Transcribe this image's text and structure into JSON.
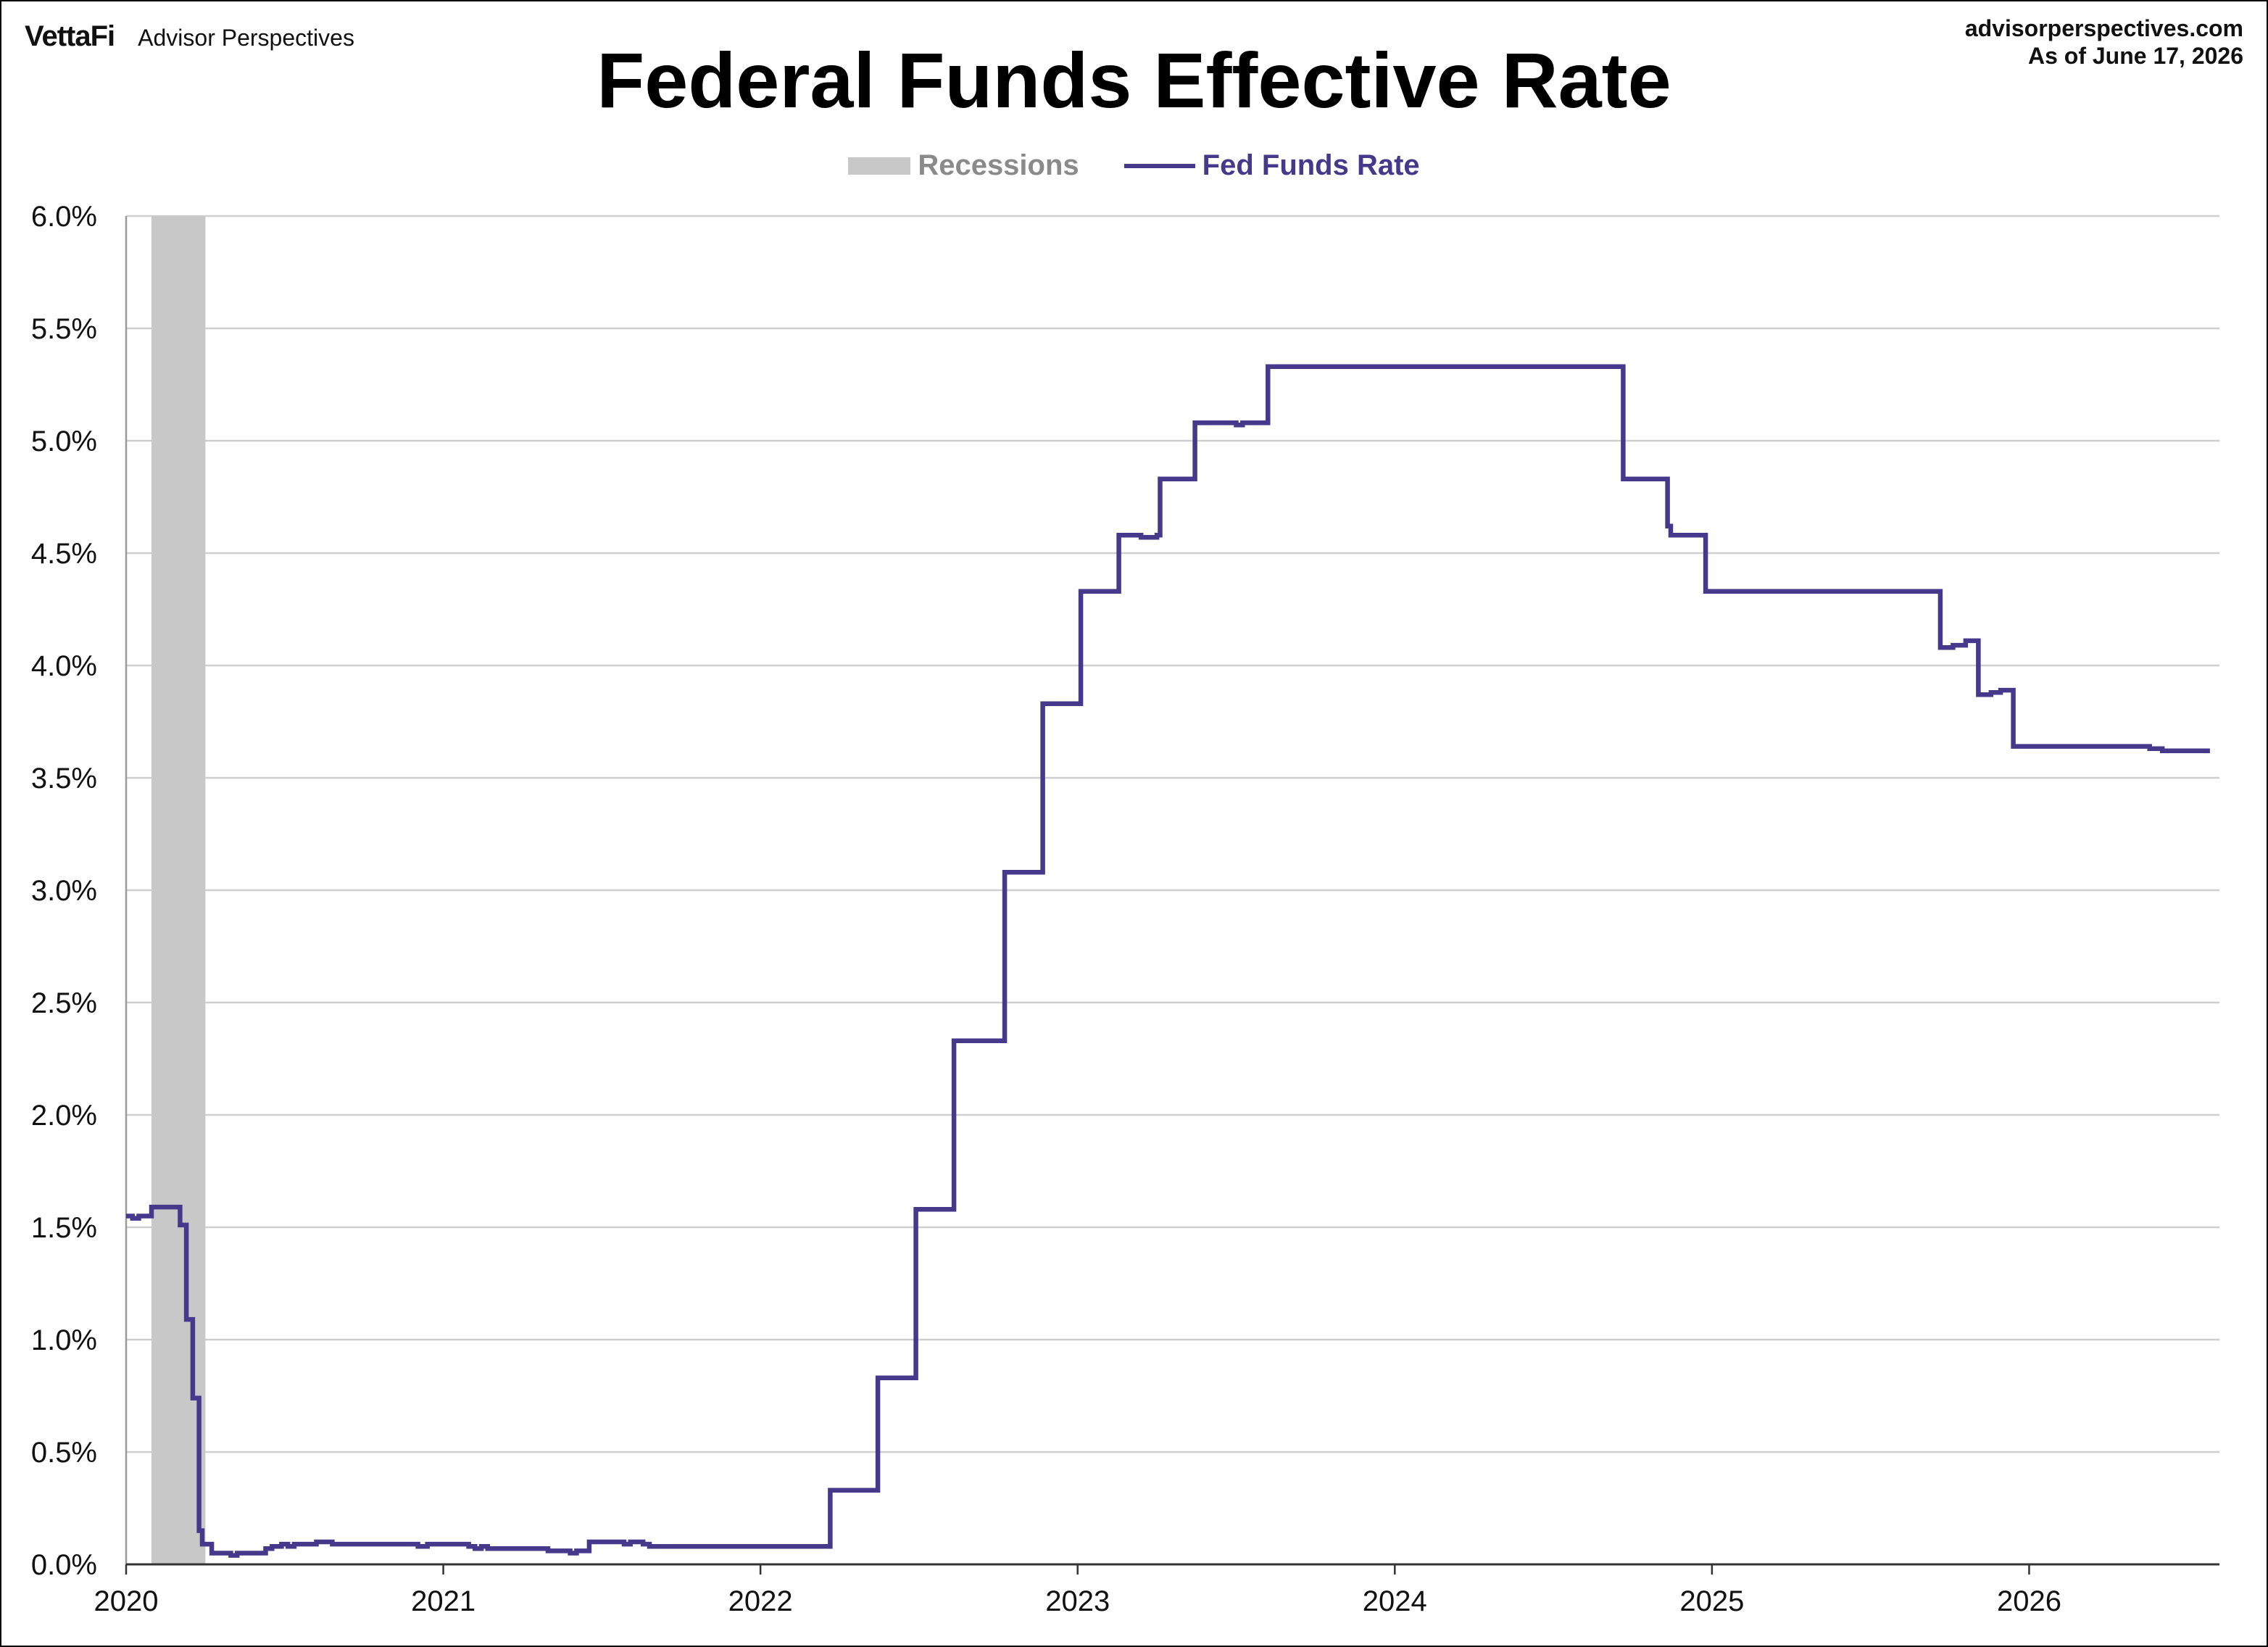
{
  "brand": {
    "logo": "VettaFi",
    "name": "Advisor Perspectives"
  },
  "source": {
    "site": "advisorperspectives.com",
    "as_of": "As of June 17, 2026"
  },
  "chart_data": {
    "type": "line",
    "title": "Federal Funds Effective Rate",
    "legend": [
      {
        "label": "Recessions",
        "color": "#c8c8c8",
        "kind": "band"
      },
      {
        "label": "Fed Funds Rate",
        "color": "#46398c",
        "kind": "line"
      }
    ],
    "legend_position": "top-center",
    "xlim": [
      2020.0,
      2026.6
    ],
    "ylim": [
      0,
      6
    ],
    "x_ticks": [
      {
        "value": 2020,
        "label": "2020"
      },
      {
        "value": 2021,
        "label": "2021"
      },
      {
        "value": 2022,
        "label": "2022"
      },
      {
        "value": 2023,
        "label": "2023"
      },
      {
        "value": 2024,
        "label": "2024"
      },
      {
        "value": 2025,
        "label": "2025"
      },
      {
        "value": 2026,
        "label": "2026"
      }
    ],
    "y_ticks": [
      {
        "value": 0.0,
        "label": "0.0%"
      },
      {
        "value": 0.5,
        "label": "0.5%"
      },
      {
        "value": 1.0,
        "label": "1.0%"
      },
      {
        "value": 1.5,
        "label": "1.5%"
      },
      {
        "value": 2.0,
        "label": "2.0%"
      },
      {
        "value": 2.5,
        "label": "2.5%"
      },
      {
        "value": 3.0,
        "label": "3.0%"
      },
      {
        "value": 3.5,
        "label": "3.5%"
      },
      {
        "value": 4.0,
        "label": "4.0%"
      },
      {
        "value": 4.5,
        "label": "4.5%"
      },
      {
        "value": 5.0,
        "label": "5.0%"
      },
      {
        "value": 5.5,
        "label": "5.5%"
      },
      {
        "value": 6.0,
        "label": "6.0%"
      }
    ],
    "grid": true,
    "recessions": [
      {
        "start": 2020.08,
        "end": 2020.25
      }
    ],
    "series": [
      {
        "name": "Fed Funds Rate",
        "color": "#46398c",
        "step": true,
        "points": [
          [
            2020.0,
            1.55
          ],
          [
            2020.02,
            1.54
          ],
          [
            2020.04,
            1.55
          ],
          [
            2020.08,
            1.59
          ],
          [
            2020.17,
            1.51
          ],
          [
            2020.19,
            1.09
          ],
          [
            2020.21,
            0.74
          ],
          [
            2020.23,
            0.15
          ],
          [
            2020.24,
            0.09
          ],
          [
            2020.27,
            0.05
          ],
          [
            2020.33,
            0.04
          ],
          [
            2020.35,
            0.05
          ],
          [
            2020.44,
            0.07
          ],
          [
            2020.46,
            0.08
          ],
          [
            2020.49,
            0.09
          ],
          [
            2020.51,
            0.08
          ],
          [
            2020.53,
            0.09
          ],
          [
            2020.6,
            0.1
          ],
          [
            2020.65,
            0.09
          ],
          [
            2020.92,
            0.08
          ],
          [
            2020.95,
            0.09
          ],
          [
            2021.08,
            0.08
          ],
          [
            2021.1,
            0.07
          ],
          [
            2021.12,
            0.08
          ],
          [
            2021.14,
            0.07
          ],
          [
            2021.33,
            0.06
          ],
          [
            2021.4,
            0.05
          ],
          [
            2021.42,
            0.06
          ],
          [
            2021.46,
            0.1
          ],
          [
            2021.57,
            0.09
          ],
          [
            2021.59,
            0.1
          ],
          [
            2021.63,
            0.09
          ],
          [
            2021.65,
            0.08
          ],
          [
            2022.22,
            0.33
          ],
          [
            2022.37,
            0.83
          ],
          [
            2022.49,
            1.58
          ],
          [
            2022.61,
            2.33
          ],
          [
            2022.77,
            3.08
          ],
          [
            2022.89,
            3.83
          ],
          [
            2023.01,
            4.33
          ],
          [
            2023.13,
            4.58
          ],
          [
            2023.2,
            4.57
          ],
          [
            2023.25,
            4.58
          ],
          [
            2023.26,
            4.83
          ],
          [
            2023.37,
            5.08
          ],
          [
            2023.5,
            5.07
          ],
          [
            2023.52,
            5.08
          ],
          [
            2023.6,
            5.33
          ],
          [
            2024.72,
            4.83
          ],
          [
            2024.86,
            4.62
          ],
          [
            2024.87,
            4.58
          ],
          [
            2024.98,
            4.33
          ],
          [
            2025.72,
            4.08
          ],
          [
            2025.76,
            4.09
          ],
          [
            2025.8,
            4.11
          ],
          [
            2025.84,
            3.87
          ],
          [
            2025.88,
            3.88
          ],
          [
            2025.91,
            3.89
          ],
          [
            2025.95,
            3.64
          ],
          [
            2026.38,
            3.63
          ],
          [
            2026.42,
            3.62
          ],
          [
            2026.57,
            3.62
          ]
        ]
      }
    ]
  }
}
